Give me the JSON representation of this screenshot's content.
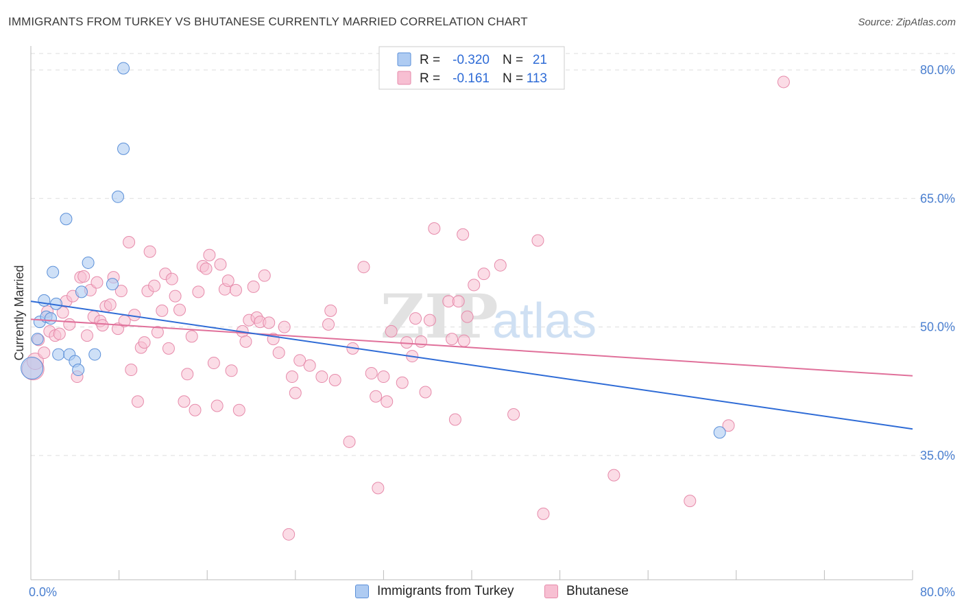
{
  "header": {
    "title": "IMMIGRANTS FROM TURKEY VS BHUTANESE CURRENTLY MARRIED CORRELATION CHART",
    "source": "Source: ZipAtlas.com"
  },
  "watermark": {
    "zip": "ZIP",
    "atlas": "atlas"
  },
  "legend": {
    "rows": [
      {
        "r_label": "R =",
        "r_value": "-0.320",
        "n_label": "N =",
        "n_value": "21"
      },
      {
        "r_label": "R =",
        "r_value": "-0.161",
        "n_label": "N =",
        "n_value": "113"
      }
    ]
  },
  "colors": {
    "series1_fill": "#aecbf2",
    "series1_stroke": "#5a8fd8",
    "series1_line": "#2e6bd6",
    "series2_fill": "#f7bfd2",
    "series2_stroke": "#e68aaa",
    "series2_line": "#e0709a",
    "tick": "#4a7fd0",
    "grid": "#dddddd"
  },
  "chart_data": {
    "type": "scatter",
    "title": "IMMIGRANTS FROM TURKEY VS BHUTANESE CURRENTLY MARRIED CORRELATION CHART",
    "ylabel": "Currently Married",
    "xlabel": "",
    "xlim": [
      0,
      80
    ],
    "ylim": [
      20.5,
      82.8
    ],
    "x_tick_labels": [
      "0.0%",
      "80.0%"
    ],
    "y_ticks": [
      35,
      50,
      65,
      80
    ],
    "y_tick_labels": [
      "35.0%",
      "50.0%",
      "65.0%",
      "80.0%"
    ],
    "grid": true,
    "legend_placement": "top-center",
    "series": [
      {
        "name": "Immigrants from Turkey",
        "r": -0.32,
        "n": 21,
        "trend": {
          "x": [
            0,
            80
          ],
          "y": [
            53.0,
            38.1
          ]
        },
        "points": [
          {
            "x": 0.1,
            "y": 45.2,
            "s": 16
          },
          {
            "x": 0.6,
            "y": 48.6
          },
          {
            "x": 0.8,
            "y": 50.6
          },
          {
            "x": 1.2,
            "y": 53.1
          },
          {
            "x": 1.4,
            "y": 51.2
          },
          {
            "x": 1.8,
            "y": 51.0
          },
          {
            "x": 2.0,
            "y": 56.4
          },
          {
            "x": 2.3,
            "y": 52.7
          },
          {
            "x": 2.5,
            "y": 46.8
          },
          {
            "x": 3.2,
            "y": 62.6
          },
          {
            "x": 3.5,
            "y": 46.8
          },
          {
            "x": 4.0,
            "y": 46.0
          },
          {
            "x": 4.3,
            "y": 45.0
          },
          {
            "x": 4.6,
            "y": 54.1
          },
          {
            "x": 5.2,
            "y": 57.5
          },
          {
            "x": 5.8,
            "y": 46.8
          },
          {
            "x": 7.4,
            "y": 55.0
          },
          {
            "x": 7.9,
            "y": 65.2
          },
          {
            "x": 8.4,
            "y": 70.8
          },
          {
            "x": 8.4,
            "y": 80.2
          },
          {
            "x": 62.5,
            "y": 37.7
          }
        ]
      },
      {
        "name": "Bhutanese",
        "r": -0.161,
        "n": 113,
        "trend": {
          "x": [
            0,
            80
          ],
          "y": [
            50.9,
            44.3
          ]
        },
        "points": [
          {
            "x": 0.2,
            "y": 45.1,
            "s": 16
          },
          {
            "x": 0.4,
            "y": 46.0,
            "s": 12
          },
          {
            "x": 0.7,
            "y": 48.5
          },
          {
            "x": 1.2,
            "y": 47.0
          },
          {
            "x": 1.5,
            "y": 51.8
          },
          {
            "x": 1.7,
            "y": 49.5
          },
          {
            "x": 2.2,
            "y": 49.0
          },
          {
            "x": 2.6,
            "y": 49.2
          },
          {
            "x": 2.9,
            "y": 51.7
          },
          {
            "x": 3.2,
            "y": 53.0
          },
          {
            "x": 3.5,
            "y": 50.3
          },
          {
            "x": 3.8,
            "y": 53.6
          },
          {
            "x": 4.2,
            "y": 44.2
          },
          {
            "x": 4.5,
            "y": 55.8
          },
          {
            "x": 4.8,
            "y": 55.9
          },
          {
            "x": 5.1,
            "y": 49.0
          },
          {
            "x": 5.4,
            "y": 54.3
          },
          {
            "x": 5.7,
            "y": 51.2
          },
          {
            "x": 6.0,
            "y": 55.2
          },
          {
            "x": 6.3,
            "y": 50.7
          },
          {
            "x": 6.5,
            "y": 50.2
          },
          {
            "x": 6.8,
            "y": 52.4
          },
          {
            "x": 7.2,
            "y": 52.6
          },
          {
            "x": 7.5,
            "y": 55.8
          },
          {
            "x": 7.9,
            "y": 49.8
          },
          {
            "x": 8.2,
            "y": 54.2
          },
          {
            "x": 8.5,
            "y": 50.7
          },
          {
            "x": 8.9,
            "y": 59.9
          },
          {
            "x": 9.1,
            "y": 45.0
          },
          {
            "x": 9.4,
            "y": 51.4
          },
          {
            "x": 9.7,
            "y": 41.3
          },
          {
            "x": 10.0,
            "y": 47.6
          },
          {
            "x": 10.3,
            "y": 48.2
          },
          {
            "x": 10.6,
            "y": 54.2
          },
          {
            "x": 10.8,
            "y": 58.8
          },
          {
            "x": 11.2,
            "y": 54.8
          },
          {
            "x": 11.5,
            "y": 49.4
          },
          {
            "x": 11.9,
            "y": 51.9
          },
          {
            "x": 12.2,
            "y": 56.2
          },
          {
            "x": 12.5,
            "y": 47.5
          },
          {
            "x": 12.8,
            "y": 55.6
          },
          {
            "x": 13.1,
            "y": 53.6
          },
          {
            "x": 13.5,
            "y": 52.0
          },
          {
            "x": 13.9,
            "y": 41.3
          },
          {
            "x": 14.2,
            "y": 44.5
          },
          {
            "x": 14.6,
            "y": 48.9
          },
          {
            "x": 14.9,
            "y": 40.3
          },
          {
            "x": 15.2,
            "y": 54.1
          },
          {
            "x": 15.6,
            "y": 57.1
          },
          {
            "x": 15.9,
            "y": 56.8
          },
          {
            "x": 16.2,
            "y": 58.4
          },
          {
            "x": 16.6,
            "y": 45.8
          },
          {
            "x": 16.9,
            "y": 40.8
          },
          {
            "x": 17.2,
            "y": 57.3
          },
          {
            "x": 17.6,
            "y": 54.4
          },
          {
            "x": 17.9,
            "y": 55.4
          },
          {
            "x": 18.2,
            "y": 44.9
          },
          {
            "x": 18.6,
            "y": 54.3
          },
          {
            "x": 18.9,
            "y": 40.3
          },
          {
            "x": 19.2,
            "y": 49.5
          },
          {
            "x": 19.5,
            "y": 48.3
          },
          {
            "x": 19.8,
            "y": 50.8
          },
          {
            "x": 20.2,
            "y": 54.7
          },
          {
            "x": 20.5,
            "y": 51.1
          },
          {
            "x": 20.8,
            "y": 50.6
          },
          {
            "x": 21.2,
            "y": 56.0
          },
          {
            "x": 21.6,
            "y": 50.5
          },
          {
            "x": 22.0,
            "y": 48.6
          },
          {
            "x": 22.5,
            "y": 47.0
          },
          {
            "x": 23.0,
            "y": 50.0
          },
          {
            "x": 23.4,
            "y": 25.8
          },
          {
            "x": 23.7,
            "y": 44.2
          },
          {
            "x": 24.0,
            "y": 42.3
          },
          {
            "x": 24.4,
            "y": 46.1
          },
          {
            "x": 25.3,
            "y": 45.5
          },
          {
            "x": 26.4,
            "y": 44.2
          },
          {
            "x": 27.0,
            "y": 50.3
          },
          {
            "x": 27.2,
            "y": 51.9
          },
          {
            "x": 27.6,
            "y": 43.8
          },
          {
            "x": 28.9,
            "y": 36.6
          },
          {
            "x": 29.2,
            "y": 47.5
          },
          {
            "x": 30.2,
            "y": 57.0
          },
          {
            "x": 30.9,
            "y": 44.6
          },
          {
            "x": 31.3,
            "y": 41.9
          },
          {
            "x": 31.5,
            "y": 31.2
          },
          {
            "x": 32.0,
            "y": 44.2
          },
          {
            "x": 32.3,
            "y": 41.3
          },
          {
            "x": 32.7,
            "y": 49.5
          },
          {
            "x": 33.7,
            "y": 43.5
          },
          {
            "x": 34.1,
            "y": 48.2
          },
          {
            "x": 34.6,
            "y": 46.6
          },
          {
            "x": 34.9,
            "y": 51.0
          },
          {
            "x": 35.4,
            "y": 48.3
          },
          {
            "x": 35.8,
            "y": 42.4
          },
          {
            "x": 36.2,
            "y": 50.8
          },
          {
            "x": 36.6,
            "y": 61.5
          },
          {
            "x": 37.9,
            "y": 53.0
          },
          {
            "x": 38.2,
            "y": 48.6
          },
          {
            "x": 38.5,
            "y": 39.2
          },
          {
            "x": 38.8,
            "y": 53.0
          },
          {
            "x": 39.3,
            "y": 48.4
          },
          {
            "x": 39.2,
            "y": 60.8
          },
          {
            "x": 39.6,
            "y": 51.2
          },
          {
            "x": 40.2,
            "y": 54.9
          },
          {
            "x": 41.1,
            "y": 56.2
          },
          {
            "x": 42.6,
            "y": 57.2
          },
          {
            "x": 43.8,
            "y": 39.8
          },
          {
            "x": 46.0,
            "y": 60.1
          },
          {
            "x": 46.5,
            "y": 28.2
          },
          {
            "x": 52.9,
            "y": 32.7
          },
          {
            "x": 59.8,
            "y": 29.7
          },
          {
            "x": 63.3,
            "y": 38.5
          },
          {
            "x": 68.3,
            "y": 78.6
          }
        ]
      }
    ]
  }
}
